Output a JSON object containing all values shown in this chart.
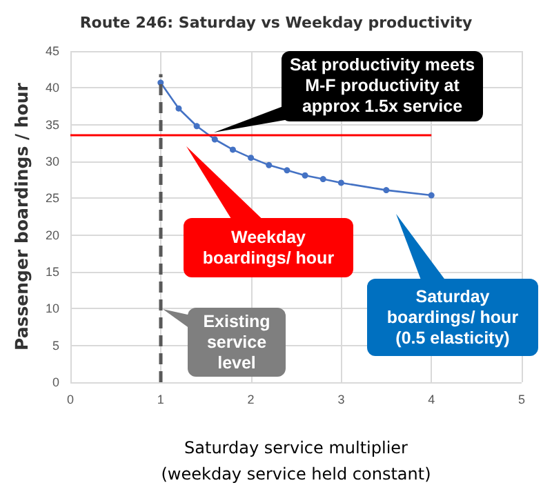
{
  "chart_data": {
    "type": "line",
    "title": "Route 246: Saturday vs Weekday productivity",
    "xlabel": "Saturday service multiplier (weekday service held constant)",
    "ylabel": "Passenger boardings / hour",
    "x": [
      1,
      1.2,
      1.4,
      1.6,
      1.8,
      2,
      2.2,
      2.4,
      2.6,
      2.8,
      3,
      3.5,
      4
    ],
    "series": [
      {
        "color": "#4472c4",
        "values": [
          40.7,
          37.2,
          34.8,
          33.0,
          31.6,
          30.5,
          29.5,
          28.8,
          28.1,
          27.6,
          27.1,
          26.1,
          25.4
        ]
      }
    ],
    "xlim": [
      0,
      5
    ],
    "xticks": [
      0,
      1,
      2,
      3,
      4,
      5
    ],
    "ylim": [
      0,
      45
    ],
    "yticks": [
      0,
      5,
      10,
      15,
      20,
      25,
      30,
      35,
      40,
      45
    ],
    "grid": true,
    "marker": "circle",
    "line_style": "solid",
    "ref_lines": [
      {
        "axis": "y",
        "value": 33.7,
        "color": "#ff0000",
        "line_style": "solid"
      },
      {
        "axis": "x",
        "value": 1,
        "color": "#595959",
        "line_style": "dashed"
      }
    ],
    "annotations": [
      "Sat productivity meets M-F productivity at approx 1.5x service",
      "Weekday boardings/ hour",
      "Saturday boardings/ hour (0.5 elasticity)",
      "Existing service level"
    ]
  }
}
